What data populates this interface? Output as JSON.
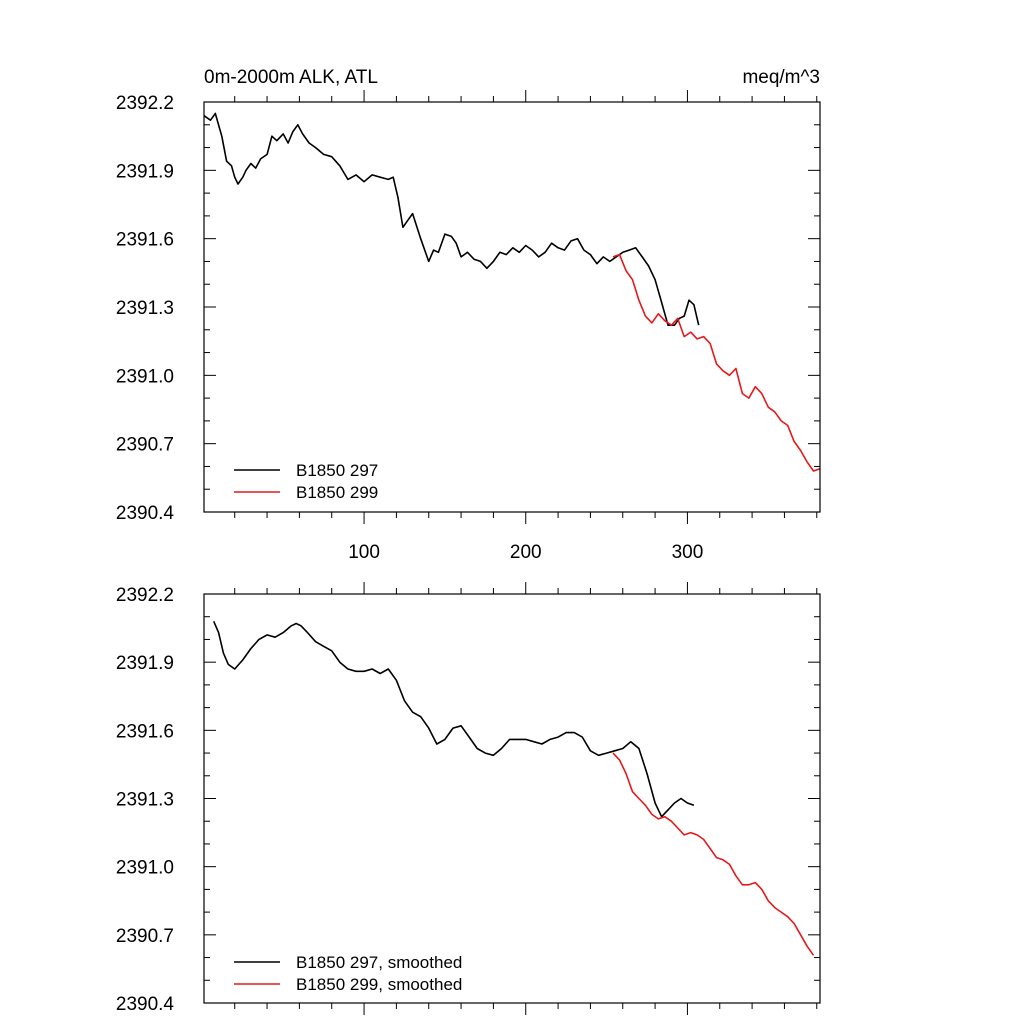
{
  "chart_data": [
    {
      "type": "line",
      "title_left": "0m-2000m ALK, ATL",
      "title_right": "meq/m^3",
      "xlim": [
        1,
        382
      ],
      "ylim": [
        2390.4,
        2392.2
      ],
      "xticks": [
        100,
        200,
        300
      ],
      "xtick_labels": [
        "100",
        "200",
        "300"
      ],
      "yticks": [
        2390.4,
        2390.7,
        2391.0,
        2391.3,
        2391.6,
        2391.9,
        2392.2
      ],
      "ytick_labels": [
        "2390.4",
        "2390.7",
        "2391.0",
        "2391.3",
        "2391.6",
        "2391.9",
        "2392.2"
      ],
      "legend_position": "bottom-left",
      "series": [
        {
          "name": "B1850 297",
          "color": "#000000",
          "x": [
            1,
            5,
            8,
            12,
            15,
            18,
            20,
            22,
            25,
            27,
            30,
            33,
            36,
            40,
            43,
            46,
            50,
            53,
            56,
            59,
            62,
            66,
            70,
            75,
            80,
            85,
            90,
            95,
            100,
            105,
            110,
            115,
            118,
            121,
            124,
            127,
            130,
            135,
            140,
            143,
            146,
            150,
            154,
            157,
            160,
            164,
            168,
            172,
            176,
            180,
            184,
            188,
            192,
            196,
            200,
            204,
            208,
            212,
            216,
            220,
            224,
            228,
            232,
            236,
            240,
            244,
            248,
            252,
            256,
            260,
            264,
            268,
            272,
            276,
            280,
            284,
            288,
            292,
            295,
            298,
            301,
            304,
            307
          ],
          "y": [
            2392.14,
            2392.12,
            2392.15,
            2392.05,
            2391.94,
            2391.92,
            2391.87,
            2391.84,
            2391.87,
            2391.9,
            2391.93,
            2391.91,
            2391.95,
            2391.97,
            2392.05,
            2392.03,
            2392.06,
            2392.02,
            2392.07,
            2392.1,
            2392.06,
            2392.02,
            2392.0,
            2391.97,
            2391.96,
            2391.92,
            2391.86,
            2391.88,
            2391.85,
            2391.88,
            2391.87,
            2391.86,
            2391.87,
            2391.78,
            2391.65,
            2391.68,
            2391.71,
            2391.6,
            2391.5,
            2391.55,
            2391.54,
            2391.62,
            2391.61,
            2391.58,
            2391.52,
            2391.54,
            2391.51,
            2391.5,
            2391.47,
            2391.5,
            2391.54,
            2391.53,
            2391.56,
            2391.54,
            2391.57,
            2391.55,
            2391.52,
            2391.54,
            2391.58,
            2391.56,
            2391.55,
            2391.59,
            2391.6,
            2391.55,
            2391.53,
            2391.49,
            2391.52,
            2391.5,
            2391.52,
            2391.54,
            2391.55,
            2391.56,
            2391.52,
            2391.48,
            2391.42,
            2391.32,
            2391.22,
            2391.22,
            2391.25,
            2391.26,
            2391.33,
            2391.31,
            2391.22
          ]
        },
        {
          "name": "B1850 299",
          "color": "#e31a1c",
          "x": [
            254,
            258,
            262,
            266,
            270,
            274,
            278,
            282,
            286,
            290,
            294,
            298,
            302,
            306,
            310,
            314,
            318,
            322,
            326,
            330,
            334,
            338,
            342,
            346,
            350,
            354,
            358,
            362,
            366,
            370,
            374,
            378,
            382
          ],
          "y": [
            2391.52,
            2391.53,
            2391.46,
            2391.42,
            2391.33,
            2391.26,
            2391.23,
            2391.27,
            2391.24,
            2391.22,
            2391.25,
            2391.17,
            2391.19,
            2391.16,
            2391.17,
            2391.14,
            2391.05,
            2391.02,
            2391.0,
            2391.03,
            2390.92,
            2390.9,
            2390.95,
            2390.92,
            2390.86,
            2390.84,
            2390.8,
            2390.78,
            2390.71,
            2390.67,
            2390.62,
            2390.58,
            2390.59
          ]
        }
      ]
    },
    {
      "type": "line",
      "xlim": [
        1,
        382
      ],
      "ylim": [
        2390.4,
        2392.2
      ],
      "xticks": [
        100,
        200,
        300
      ],
      "yticks": [
        2390.4,
        2390.7,
        2391.0,
        2391.3,
        2391.6,
        2391.9,
        2392.2
      ],
      "ytick_labels": [
        "2390.4",
        "2390.7",
        "2391.0",
        "2391.3",
        "2391.6",
        "2391.9",
        "2392.2"
      ],
      "legend_position": "bottom-left",
      "series": [
        {
          "name": "B1850 297, smoothed",
          "color": "#000000",
          "x": [
            7,
            10,
            13,
            16,
            20,
            25,
            30,
            35,
            40,
            45,
            50,
            55,
            58,
            61,
            65,
            70,
            75,
            80,
            85,
            90,
            95,
            100,
            105,
            110,
            115,
            120,
            125,
            130,
            135,
            140,
            145,
            150,
            155,
            160,
            165,
            170,
            175,
            180,
            185,
            190,
            195,
            200,
            205,
            210,
            215,
            220,
            225,
            230,
            235,
            240,
            245,
            250,
            255,
            260,
            265,
            270,
            275,
            280,
            284,
            288,
            292,
            296,
            300,
            304
          ],
          "y": [
            2392.08,
            2392.03,
            2391.94,
            2391.89,
            2391.87,
            2391.91,
            2391.96,
            2392.0,
            2392.02,
            2392.01,
            2392.03,
            2392.06,
            2392.07,
            2392.06,
            2392.03,
            2391.99,
            2391.97,
            2391.95,
            2391.9,
            2391.87,
            2391.86,
            2391.86,
            2391.87,
            2391.85,
            2391.87,
            2391.82,
            2391.73,
            2391.68,
            2391.66,
            2391.61,
            2391.54,
            2391.56,
            2391.61,
            2391.62,
            2391.57,
            2391.52,
            2391.5,
            2391.49,
            2391.52,
            2391.56,
            2391.56,
            2391.56,
            2391.55,
            2391.54,
            2391.56,
            2391.57,
            2391.59,
            2391.59,
            2391.57,
            2391.51,
            2391.49,
            2391.5,
            2391.51,
            2391.52,
            2391.55,
            2391.52,
            2391.41,
            2391.28,
            2391.22,
            2391.25,
            2391.28,
            2391.3,
            2391.28,
            2391.27
          ]
        },
        {
          "name": "B1850 299, smoothed",
          "color": "#e31a1c",
          "x": [
            254,
            258,
            262,
            266,
            270,
            274,
            278,
            282,
            286,
            290,
            294,
            298,
            302,
            306,
            310,
            314,
            318,
            322,
            326,
            330,
            334,
            338,
            342,
            346,
            350,
            354,
            358,
            362,
            366,
            370,
            374,
            378
          ],
          "y": [
            2391.5,
            2391.47,
            2391.41,
            2391.33,
            2391.3,
            2391.27,
            2391.23,
            2391.21,
            2391.22,
            2391.2,
            2391.17,
            2391.14,
            2391.15,
            2391.14,
            2391.12,
            2391.08,
            2391.04,
            2391.03,
            2391.01,
            2390.96,
            2390.92,
            2390.92,
            2390.93,
            2390.9,
            2390.85,
            2390.82,
            2390.8,
            2390.78,
            2390.75,
            2390.7,
            2390.65,
            2390.61
          ]
        }
      ]
    }
  ]
}
